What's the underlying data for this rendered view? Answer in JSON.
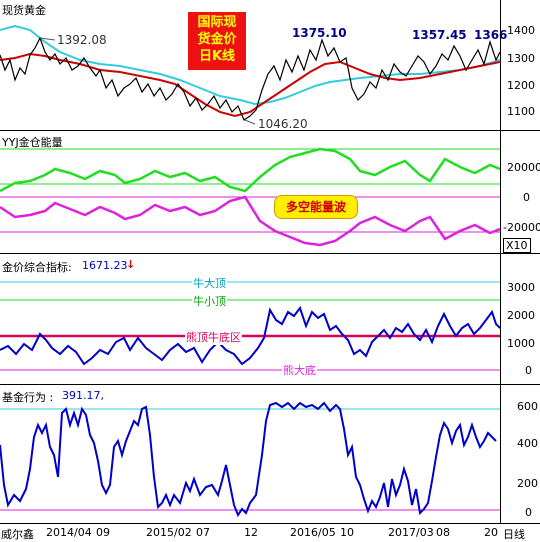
{
  "panel1": {
    "title": "现货黄金",
    "price_high": "1375.10",
    "price_high2": "1357.45",
    "price_high3": "1366",
    "price_left": "1392.08",
    "price_low": "1046.20",
    "banner": "国际现\n货金价\n日K线",
    "y_ticks": [
      "1400",
      "1300",
      "1200",
      "1100"
    ]
  },
  "panel2": {
    "title": "YYJ金仓能量",
    "badge": "多空能量波",
    "y_ticks": [
      "20000",
      "0",
      "-20000"
    ],
    "multiplier": "X10"
  },
  "panel3": {
    "title": "金价综合指标:",
    "value": "1671.23",
    "arrow": "↓",
    "labels": {
      "bull_big": "牛大顶",
      "bull_small": "牛小顶",
      "bear_bull": "熊顶牛底区",
      "bear_big": "熊大底"
    },
    "y_ticks": [
      "3000",
      "2000",
      "1000",
      "0"
    ]
  },
  "panel4": {
    "title": "基金行为 :",
    "value": "391.17,",
    "y_ticks": [
      "600",
      "400",
      "200",
      "0"
    ]
  },
  "xaxis": {
    "items": [
      "威尔鑫",
      "2014/04",
      "09",
      "2015/02",
      "07",
      "12",
      "2016/05",
      "10",
      "2017/03",
      "08",
      "20"
    ],
    "period": "日线"
  },
  "colors": {
    "price": "#000000",
    "ma_red": "#cc0000",
    "ma_cyan": "#33ccdd",
    "green": "#22dd22",
    "magenta": "#dd22dd",
    "blue": "#0000cc",
    "pink_line": "#dd0055",
    "banner_bg": "#ee1111",
    "banner_fg": "#ffff00",
    "badge_bg": "#ffee00",
    "badge_fg": "#cc0000"
  }
}
